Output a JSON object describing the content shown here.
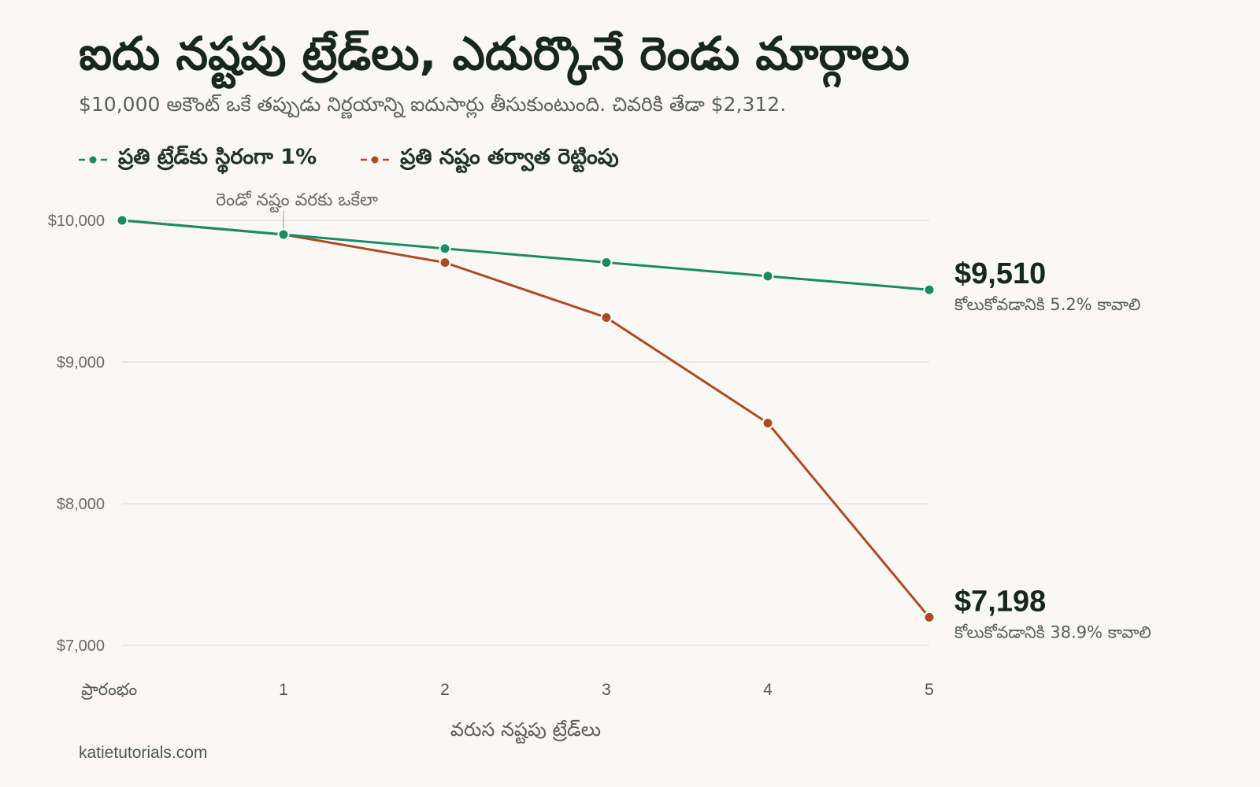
{
  "title": "ఐదు నష్టపు ట్రేడ్‌లు, ఎదుర్కొనే రెండు మార్గాలు",
  "subtitle": "$10,000 అకౌంట్ ఒకే తప్పుడు నిర్ణయాన్ని ఐదుసార్లు తీసుకుంటుంది. చివరికి తేడా $2,312.",
  "source": "katietutorials.com",
  "colors": {
    "fixed": "#1b8a67",
    "double": "#b04a25",
    "grid": "#e6e4dd",
    "background": "#f9f8f4"
  },
  "chart_data": {
    "type": "line",
    "categories": [
      "ప్రారంభం",
      "1",
      "2",
      "3",
      "4",
      "5"
    ],
    "xlabel": "వరుస నష్టపు ట్రేడ్‌లు",
    "ylabel": "",
    "yticks": [
      "$7,000",
      "$8,000",
      "$9,000",
      "$10,000"
    ],
    "ytick_values": [
      7000,
      8000,
      9000,
      10000
    ],
    "ylim": [
      7000,
      10000
    ],
    "grid": true,
    "legend_position": "top-left",
    "series": [
      {
        "name": "ప్రతి ట్రేడ్‌కు స్థిరంగా 1%",
        "color_key": "fixed",
        "values": [
          10000,
          9900,
          9801,
          9703,
          9606,
          9510
        ],
        "end_label": "$9,510",
        "end_note": "కోలుకోవడానికి 5.2% కావాలి"
      },
      {
        "name": "ప్రతి నష్టం తర్వాత రెట్టింపు",
        "color_key": "double",
        "values": [
          10000,
          9900,
          9702,
          9314,
          8569,
          7198
        ],
        "end_label": "$7,198",
        "end_note": "కోలుకోవడానికి 38.9% కావాలి"
      }
    ],
    "annotations": [
      {
        "text": "రెండో నష్టం వరకు ఒకేలా",
        "x_index": 1,
        "series_index": 0
      }
    ]
  }
}
